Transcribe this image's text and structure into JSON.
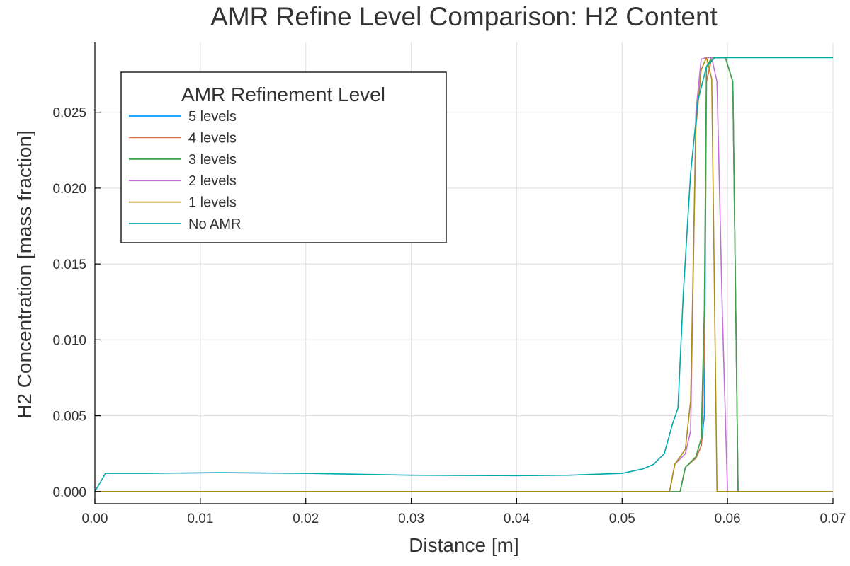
{
  "chart_data": {
    "type": "line",
    "title": "AMR Refine Level Comparison: H2 Content",
    "xlabel": "Distance [m]",
    "ylabel": "H2 Concentration [mass fraction]",
    "xlim": [
      0.0,
      0.07
    ],
    "ylim": [
      -0.0008,
      0.0296
    ],
    "xticks": [
      0.0,
      0.01,
      0.02,
      0.03,
      0.04,
      0.05,
      0.06,
      0.07
    ],
    "xtick_labels": [
      "0.00",
      "0.01",
      "0.02",
      "0.03",
      "0.04",
      "0.05",
      "0.06",
      "0.07"
    ],
    "yticks": [
      0.0,
      0.005,
      0.01,
      0.015,
      0.02,
      0.025
    ],
    "ytick_labels": [
      "0.000",
      "0.005",
      "0.010",
      "0.015",
      "0.020",
      "0.025"
    ],
    "grid": true,
    "legend": {
      "title": "AMR Refinement Level",
      "position": "top-left"
    },
    "series": [
      {
        "name": "5 levels",
        "color": "#009af9",
        "points": [
          [
            0.0,
            0.0
          ],
          [
            0.0555,
            0.0
          ],
          [
            0.056,
            0.0016
          ],
          [
            0.057,
            0.0022
          ],
          [
            0.0575,
            0.003
          ],
          [
            0.0578,
            0.005
          ],
          [
            0.058,
            0.027
          ],
          [
            0.0585,
            0.0286
          ],
          [
            0.0598,
            0.0286
          ],
          [
            0.0605,
            0.027
          ],
          [
            0.061,
            0.0
          ],
          [
            0.07,
            0.0
          ]
        ]
      },
      {
        "name": "4 levels",
        "color": "#e26f46",
        "points": [
          [
            0.0,
            0.0
          ],
          [
            0.0555,
            0.0
          ],
          [
            0.056,
            0.0016
          ],
          [
            0.057,
            0.0022
          ],
          [
            0.0575,
            0.003
          ],
          [
            0.0578,
            0.009
          ],
          [
            0.058,
            0.027
          ],
          [
            0.0585,
            0.0286
          ],
          [
            0.0598,
            0.0286
          ],
          [
            0.0605,
            0.027
          ],
          [
            0.061,
            0.0
          ],
          [
            0.07,
            0.0
          ]
        ]
      },
      {
        "name": "3 levels",
        "color": "#3da44d",
        "points": [
          [
            0.0,
            0.0
          ],
          [
            0.0555,
            0.0
          ],
          [
            0.056,
            0.0016
          ],
          [
            0.057,
            0.0023
          ],
          [
            0.0575,
            0.0035
          ],
          [
            0.0578,
            0.012
          ],
          [
            0.058,
            0.028
          ],
          [
            0.0585,
            0.0286
          ],
          [
            0.0598,
            0.0286
          ],
          [
            0.0605,
            0.027
          ],
          [
            0.061,
            0.0
          ],
          [
            0.07,
            0.0
          ]
        ]
      },
      {
        "name": "2 levels",
        "color": "#c271d2",
        "points": [
          [
            0.0,
            0.0
          ],
          [
            0.0545,
            0.0
          ],
          [
            0.055,
            0.0018
          ],
          [
            0.056,
            0.0025
          ],
          [
            0.0565,
            0.004
          ],
          [
            0.057,
            0.025
          ],
          [
            0.0575,
            0.0285
          ],
          [
            0.058,
            0.0286
          ],
          [
            0.0585,
            0.0286
          ],
          [
            0.059,
            0.027
          ],
          [
            0.0595,
            0.012
          ],
          [
            0.06,
            0.0
          ],
          [
            0.07,
            0.0
          ]
        ]
      },
      {
        "name": "1 levels",
        "color": "#ac8d18",
        "points": [
          [
            0.0,
            0.0
          ],
          [
            0.0545,
            0.0
          ],
          [
            0.055,
            0.0018
          ],
          [
            0.056,
            0.0028
          ],
          [
            0.0565,
            0.006
          ],
          [
            0.057,
            0.024
          ],
          [
            0.0575,
            0.0278
          ],
          [
            0.058,
            0.0286
          ],
          [
            0.0585,
            0.0272
          ],
          [
            0.059,
            0.0
          ],
          [
            0.07,
            0.0
          ]
        ]
      },
      {
        "name": "No AMR",
        "color": "#00a9ad",
        "points": [
          [
            0.0,
            0.0
          ],
          [
            0.001,
            0.0012
          ],
          [
            0.005,
            0.0012
          ],
          [
            0.012,
            0.00125
          ],
          [
            0.02,
            0.0012
          ],
          [
            0.03,
            0.00108
          ],
          [
            0.04,
            0.00105
          ],
          [
            0.045,
            0.00108
          ],
          [
            0.05,
            0.0012
          ],
          [
            0.052,
            0.0015
          ],
          [
            0.053,
            0.0018
          ],
          [
            0.054,
            0.0025
          ],
          [
            0.0548,
            0.0045
          ],
          [
            0.0553,
            0.0055
          ],
          [
            0.0558,
            0.013
          ],
          [
            0.0565,
            0.021
          ],
          [
            0.0572,
            0.0258
          ],
          [
            0.058,
            0.028
          ],
          [
            0.0588,
            0.0286
          ],
          [
            0.07,
            0.0286
          ]
        ]
      }
    ]
  }
}
